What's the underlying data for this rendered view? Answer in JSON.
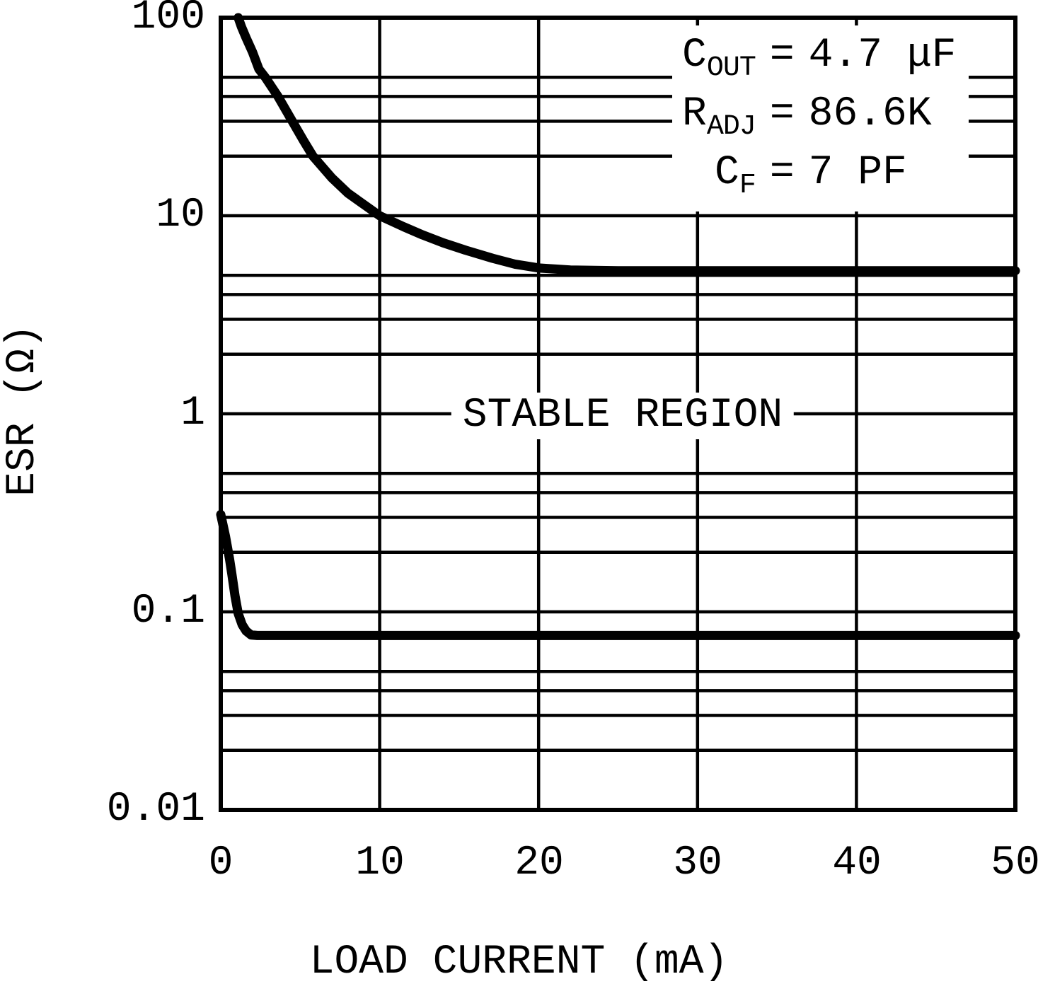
{
  "chart_data": {
    "type": "line",
    "title": "",
    "xlabel": "LOAD CURRENT (mA)",
    "ylabel": "ESR (Ω)",
    "x_scale": "linear",
    "y_scale": "log",
    "xlim": [
      0,
      50
    ],
    "ylim": [
      0.01,
      100
    ],
    "x_ticks": [
      0,
      10,
      20,
      30,
      40,
      50
    ],
    "x_tick_labels": [
      "0",
      "10",
      "20",
      "30",
      "40",
      "50"
    ],
    "y_ticks": [
      100,
      10,
      1,
      0.1,
      0.01
    ],
    "y_tick_labels": [
      "100",
      "10",
      "1",
      "0.1",
      "0.01"
    ],
    "y_minor_multipliers": [
      2,
      3,
      4,
      5
    ],
    "grid": true,
    "legend": "none",
    "annotations": {
      "region_label": "STABLE REGION",
      "conditions": [
        {
          "sym": "C",
          "sub": "OUT",
          "eq": "=",
          "val": "4.7 μF"
        },
        {
          "sym": "R",
          "sub": "ADJ",
          "eq": "=",
          "val": "86.6K"
        },
        {
          "sym": "C",
          "sub": "F",
          "eq": "=",
          "val": "7 PF"
        }
      ]
    },
    "series": [
      {
        "name": "upper ESR stability boundary",
        "points": [
          [
            1.1,
            100
          ],
          [
            1.3,
            90
          ],
          [
            1.6,
            79
          ],
          [
            2.0,
            67
          ],
          [
            2.4,
            55
          ],
          [
            2.8,
            50
          ],
          [
            3.6,
            40
          ],
          [
            4.5,
            30
          ],
          [
            5.2,
            24
          ],
          [
            5.8,
            20
          ],
          [
            7,
            15.5
          ],
          [
            8,
            13
          ],
          [
            10,
            10
          ],
          [
            11.5,
            8.8
          ],
          [
            12.7,
            8.0
          ],
          [
            14,
            7.3
          ],
          [
            15.4,
            6.7
          ],
          [
            17.1,
            6.1
          ],
          [
            18.5,
            5.7
          ],
          [
            20,
            5.45
          ],
          [
            22,
            5.32
          ],
          [
            25,
            5.28
          ],
          [
            30,
            5.28
          ],
          [
            40,
            5.28
          ],
          [
            50,
            5.28
          ]
        ]
      },
      {
        "name": "lower ESR stability boundary",
        "points": [
          [
            0,
            0.31
          ],
          [
            0.3,
            0.24
          ],
          [
            0.55,
            0.185
          ],
          [
            0.7,
            0.155
          ],
          [
            0.9,
            0.12
          ],
          [
            1.1,
            0.098
          ],
          [
            1.35,
            0.086
          ],
          [
            1.6,
            0.08
          ],
          [
            1.9,
            0.0765
          ],
          [
            2.3,
            0.076
          ],
          [
            3,
            0.076
          ],
          [
            5,
            0.076
          ],
          [
            10,
            0.076
          ],
          [
            20,
            0.076
          ],
          [
            30,
            0.076
          ],
          [
            40,
            0.076
          ],
          [
            50,
            0.076
          ]
        ]
      }
    ]
  }
}
